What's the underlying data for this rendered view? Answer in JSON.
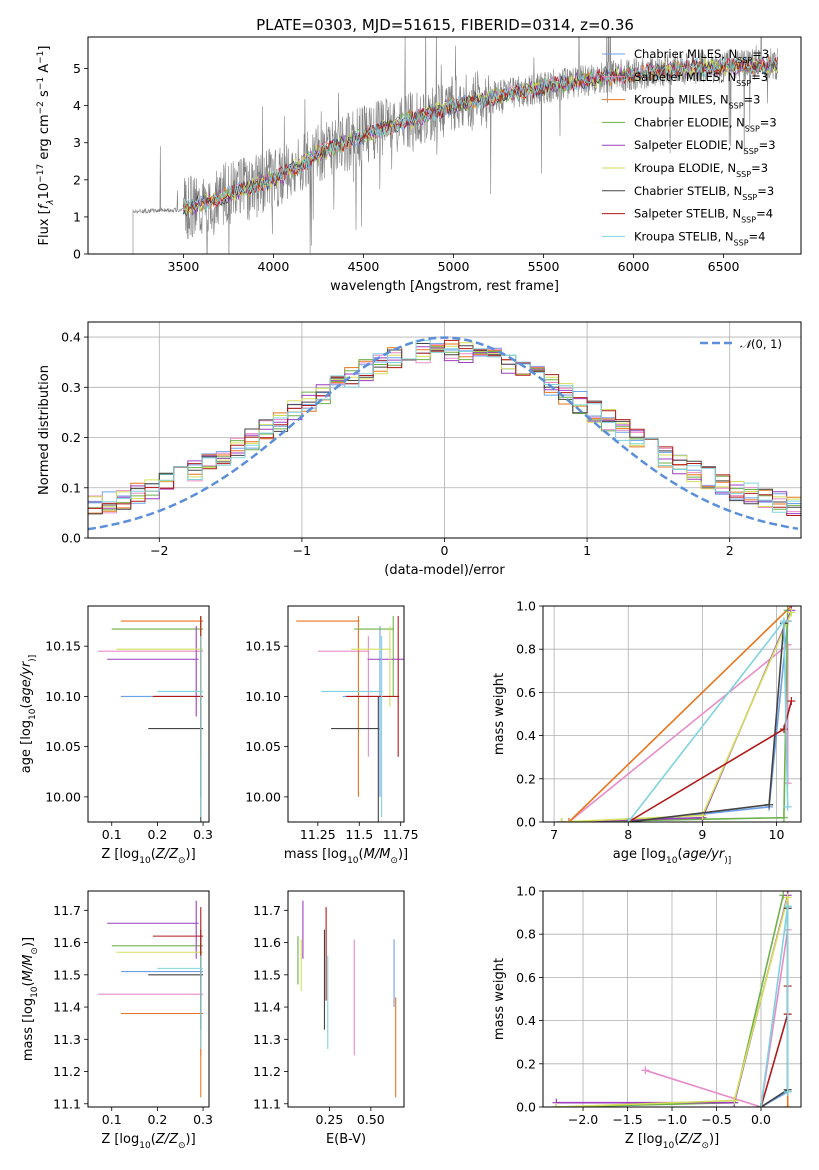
{
  "figure": {
    "title": "PLATE=0303, MJD=51615, FIBERID=0314, z=0.36"
  },
  "colors": {
    "spectrum": "#808080",
    "gaussian": "#5b8fd9",
    "grid": "#b0b0b0",
    "chabrier_miles": "#6ea0e8",
    "salpeter_miles": "#e88cc7",
    "kroupa_miles": "#e8761e",
    "chabrier_elodie": "#6fb04a",
    "salpeter_elodie": "#9c3fc0",
    "kroupa_elodie": "#d4e05a",
    "chabrier_stelib": "#444444",
    "salpeter_stelib": "#b01a1a",
    "kroupa_stelib": "#7fd3df"
  },
  "models": [
    {
      "key": "chabrier_miles",
      "label": "Chabrier MILES, N",
      "sub": "SSP",
      "n": "=3"
    },
    {
      "key": "salpeter_miles",
      "label": "Salpeter MILES, N",
      "sub": "SSP",
      "n": "=3"
    },
    {
      "key": "kroupa_miles",
      "label": "Kroupa MILES, N",
      "sub": "SSP",
      "n": "=3"
    },
    {
      "key": "chabrier_elodie",
      "label": "Chabrier ELODIE, N",
      "sub": "SSP",
      "n": "=3"
    },
    {
      "key": "salpeter_elodie",
      "label": "Salpeter ELODIE, N",
      "sub": "SSP",
      "n": "=3"
    },
    {
      "key": "kroupa_elodie",
      "label": "Kroupa ELODIE, N",
      "sub": "SSP",
      "n": "=3"
    },
    {
      "key": "chabrier_stelib",
      "label": "Chabrier STELIB, N",
      "sub": "SSP",
      "n": "=3"
    },
    {
      "key": "salpeter_stelib",
      "label": "Salpeter STELIB, N",
      "sub": "SSP",
      "n": "=4"
    },
    {
      "key": "kroupa_stelib",
      "label": "Kroupa STELIB, N",
      "sub": "SSP",
      "n": "=4"
    }
  ],
  "chart_data": [
    {
      "type": "line",
      "panel": "spectrum",
      "xlabel": "wavelength [Angstrom, rest frame]",
      "ylabel_parts": [
        "Flux [",
        "f",
        "λ",
        "10",
        "−17",
        " erg cm",
        "−2",
        " s",
        "−1",
        " A",
        "−1",
        "]"
      ],
      "xlim": [
        2970,
        6930
      ],
      "ylim": [
        0,
        5.85
      ],
      "xticks": [
        3500,
        4000,
        4500,
        5000,
        5500,
        6000,
        6500
      ],
      "yticks": [
        0,
        1,
        2,
        3,
        4,
        5
      ],
      "continuum": [
        [
          3220,
          1.15
        ],
        [
          3500,
          1.2
        ],
        [
          3750,
          1.6
        ],
        [
          4000,
          2.0
        ],
        [
          4250,
          2.7
        ],
        [
          4500,
          3.2
        ],
        [
          4750,
          3.6
        ],
        [
          5000,
          4.0
        ],
        [
          5250,
          4.25
        ],
        [
          5500,
          4.5
        ],
        [
          5750,
          4.7
        ],
        [
          6000,
          4.85
        ],
        [
          6250,
          5.0
        ],
        [
          6500,
          5.05
        ],
        [
          6800,
          5.1
        ]
      ],
      "spectrum_range": [
        3220,
        6800
      ],
      "model_range": [
        3500,
        6800
      ],
      "legend_loc": "upper right"
    },
    {
      "type": "line",
      "panel": "residuals",
      "xlabel": "(data-model)/error",
      "ylabel": "Normed distribution",
      "xlim": [
        -2.5,
        2.5
      ],
      "ylim": [
        0,
        0.43
      ],
      "xticks": [
        -2,
        -1,
        0,
        1,
        2
      ],
      "yticks": [
        0.0,
        0.1,
        0.2,
        0.3,
        0.4
      ],
      "gaussian_label_parts": [
        "𝒩",
        "(0, 1)"
      ],
      "bin_width": 0.1,
      "legend_loc": "upper right"
    },
    {
      "type": "scatter",
      "panel": "age_vs_Z",
      "xlabel_parts": [
        "Z [log",
        "10",
        "(",
        "Z/Z",
        "⊙",
        ")]"
      ],
      "ylabel_parts": [
        "age  [log",
        "10",
        "(",
        "age/yr",
        ")]"
      ],
      "xlim": [
        0.048,
        0.313
      ],
      "ylim": [
        9.975,
        10.19
      ],
      "xticks": [
        0.1,
        0.2,
        0.3
      ],
      "yticks": [
        10.0,
        10.05,
        10.1,
        10.15
      ]
    },
    {
      "type": "scatter",
      "panel": "age_vs_mass",
      "xlabel_parts": [
        "mass [log",
        "10",
        "(",
        "M/M",
        "⊙",
        ")]"
      ],
      "xlim": [
        11.07,
        11.77
      ],
      "ylim": [
        9.975,
        10.19
      ],
      "xticks": [
        11.25,
        11.5,
        11.75
      ],
      "yticks": [
        10.0,
        10.05,
        10.1,
        10.15
      ]
    },
    {
      "type": "line",
      "panel": "weight_vs_age",
      "xlabel_parts": [
        "age  [log",
        "10",
        "(",
        "age/yr",
        ")]"
      ],
      "ylabel": "mass weight",
      "xlim": [
        6.85,
        10.33
      ],
      "ylim": [
        0,
        1.0
      ],
      "xticks": [
        7,
        8,
        9,
        10
      ],
      "yticks": [
        0.0,
        0.2,
        0.4,
        0.6,
        0.8,
        1.0
      ]
    },
    {
      "type": "scatter",
      "panel": "mass_vs_Z",
      "xlabel_parts": [
        "Z [log",
        "10",
        "(",
        "Z/Z",
        "⊙",
        ")]"
      ],
      "ylabel_parts": [
        "mass [log",
        "10",
        "(",
        "M/M",
        "⊙",
        ")]"
      ],
      "xlim": [
        0.048,
        0.313
      ],
      "ylim": [
        11.09,
        11.76
      ],
      "xticks": [
        0.1,
        0.2,
        0.3
      ],
      "yticks": [
        11.1,
        11.2,
        11.3,
        11.4,
        11.5,
        11.6,
        11.7
      ]
    },
    {
      "type": "scatter",
      "panel": "mass_vs_ebv",
      "xlabel": "E(B-V)",
      "xlim": [
        0.0,
        0.7
      ],
      "ylim": [
        11.09,
        11.76
      ],
      "xticks": [
        0.25,
        0.5
      ],
      "yticks": [
        11.1,
        11.2,
        11.3,
        11.4,
        11.5,
        11.6,
        11.7
      ]
    },
    {
      "type": "line",
      "panel": "weight_vs_Z",
      "xlabel_parts": [
        "Z [log",
        "10",
        "(",
        "Z/Z",
        "⊙",
        ")]"
      ],
      "ylabel": "mass weight",
      "xlim": [
        -2.45,
        0.45
      ],
      "ylim": [
        0,
        1.0
      ],
      "xticks": [
        -2.0,
        -1.5,
        -1.0,
        -0.5,
        0.0
      ],
      "yticks": [
        0.0,
        0.2,
        0.4,
        0.6,
        0.8,
        1.0
      ]
    }
  ],
  "fit_results": [
    {
      "key": "chabrier_miles",
      "Z": [
        0.12,
        0.3
      ],
      "age": [
        10.1,
        10.0,
        10.17
      ],
      "mass": [
        11.51,
        11.4,
        11.61
      ],
      "ebv": 0.64,
      "w_age": [
        [
          8.0,
          0.0
        ],
        [
          9.9,
          0.07
        ],
        [
          10.15,
          0.93
        ]
      ],
      "w_Z": [
        [
          0.0,
          0.0
        ],
        [
          0.3,
          0.07
        ],
        [
          0.3,
          0.93
        ]
      ]
    },
    {
      "key": "salpeter_miles",
      "Z": [
        0.07,
        0.3
      ],
      "age": [
        10.145,
        10.04,
        10.16
      ],
      "mass": [
        11.44,
        11.25,
        11.61
      ],
      "ebv": 0.4,
      "w_age": [
        [
          7.2,
          0.0
        ],
        [
          10.15,
          0.82
        ],
        [
          10.15,
          0.18
        ]
      ],
      "w_Z": [
        [
          -1.3,
          0.17
        ],
        [
          0.0,
          0.0
        ],
        [
          0.3,
          0.82
        ]
      ]
    },
    {
      "key": "kroupa_miles",
      "Z": [
        0.12,
        0.3
      ],
      "age": [
        10.175,
        10.0,
        10.18
      ],
      "mass": [
        11.38,
        11.12,
        11.43
      ],
      "ebv": 0.65,
      "w_age": [
        [
          7.2,
          0.0
        ],
        [
          10.2,
          1.0
        ]
      ],
      "w_Z": [
        [
          0.3,
          0.0
        ],
        [
          0.3,
          1.0
        ]
      ]
    },
    {
      "key": "chabrier_elodie",
      "Z": [
        0.1,
        0.3
      ],
      "age": [
        10.167,
        10.1,
        10.18
      ],
      "mass": [
        11.59,
        11.47,
        11.62
      ],
      "ebv": 0.06,
      "w_age": [
        [
          7.1,
          0.0
        ],
        [
          10.1,
          0.02
        ],
        [
          10.15,
          0.98
        ]
      ],
      "w_Z": [
        [
          -2.3,
          0.0
        ],
        [
          -0.3,
          0.02
        ],
        [
          0.25,
          0.98
        ]
      ]
    },
    {
      "key": "salpeter_elodie",
      "Z": [
        0.09,
        0.29
      ],
      "age": [
        10.137,
        10.08,
        10.17
      ],
      "mass": [
        11.66,
        11.55,
        11.73
      ],
      "ebv": 0.09,
      "w_age": [
        [
          7.1,
          0.0
        ],
        [
          9.0,
          0.02
        ],
        [
          10.2,
          0.98
        ]
      ],
      "w_Z": [
        [
          -2.3,
          0.02
        ],
        [
          -0.3,
          0.02
        ],
        [
          0.3,
          0.98
        ]
      ]
    },
    {
      "key": "kroupa_elodie",
      "Z": [
        0.11,
        0.3
      ],
      "age": [
        10.147,
        10.09,
        10.17
      ],
      "mass": [
        11.57,
        11.45,
        11.61
      ],
      "ebv": 0.08,
      "w_age": [
        [
          7.1,
          0.0
        ],
        [
          9.0,
          0.03
        ],
        [
          10.2,
          0.97
        ]
      ],
      "w_Z": [
        [
          -2.3,
          0.0
        ],
        [
          -0.3,
          0.03
        ],
        [
          0.3,
          0.97
        ]
      ]
    },
    {
      "key": "chabrier_stelib",
      "Z": [
        0.18,
        0.3
      ],
      "age": [
        10.068,
        9.95,
        10.1
      ],
      "mass": [
        11.5,
        11.33,
        11.64
      ],
      "ebv": 0.22,
      "w_age": [
        [
          8.0,
          0.0
        ],
        [
          9.9,
          0.08
        ],
        [
          10.1,
          0.92
        ]
      ],
      "w_Z": [
        [
          0.0,
          0.0
        ],
        [
          0.3,
          0.08
        ],
        [
          0.3,
          0.92
        ]
      ]
    },
    {
      "key": "salpeter_stelib",
      "Z": [
        0.19,
        0.3
      ],
      "age": [
        10.1,
        10.04,
        10.18
      ],
      "mass": [
        11.62,
        11.42,
        11.71
      ],
      "ebv": 0.23,
      "w_age": [
        [
          8.0,
          0.0
        ],
        [
          10.1,
          0.43
        ],
        [
          10.2,
          0.56
        ]
      ],
      "w_Z": [
        [
          0.0,
          0.0
        ],
        [
          0.3,
          0.43
        ],
        [
          0.3,
          0.56
        ]
      ]
    },
    {
      "key": "kroupa_stelib",
      "Z": [
        0.2,
        0.3
      ],
      "age": [
        10.105,
        9.98,
        10.16
      ],
      "mass": [
        11.52,
        11.27,
        11.56
      ],
      "ebv": 0.24,
      "w_age": [
        [
          8.0,
          0.0
        ],
        [
          10.1,
          0.93
        ],
        [
          10.15,
          0.07
        ]
      ],
      "w_Z": [
        [
          0.0,
          0.0
        ],
        [
          0.3,
          0.93
        ],
        [
          0.3,
          0.07
        ]
      ]
    }
  ]
}
